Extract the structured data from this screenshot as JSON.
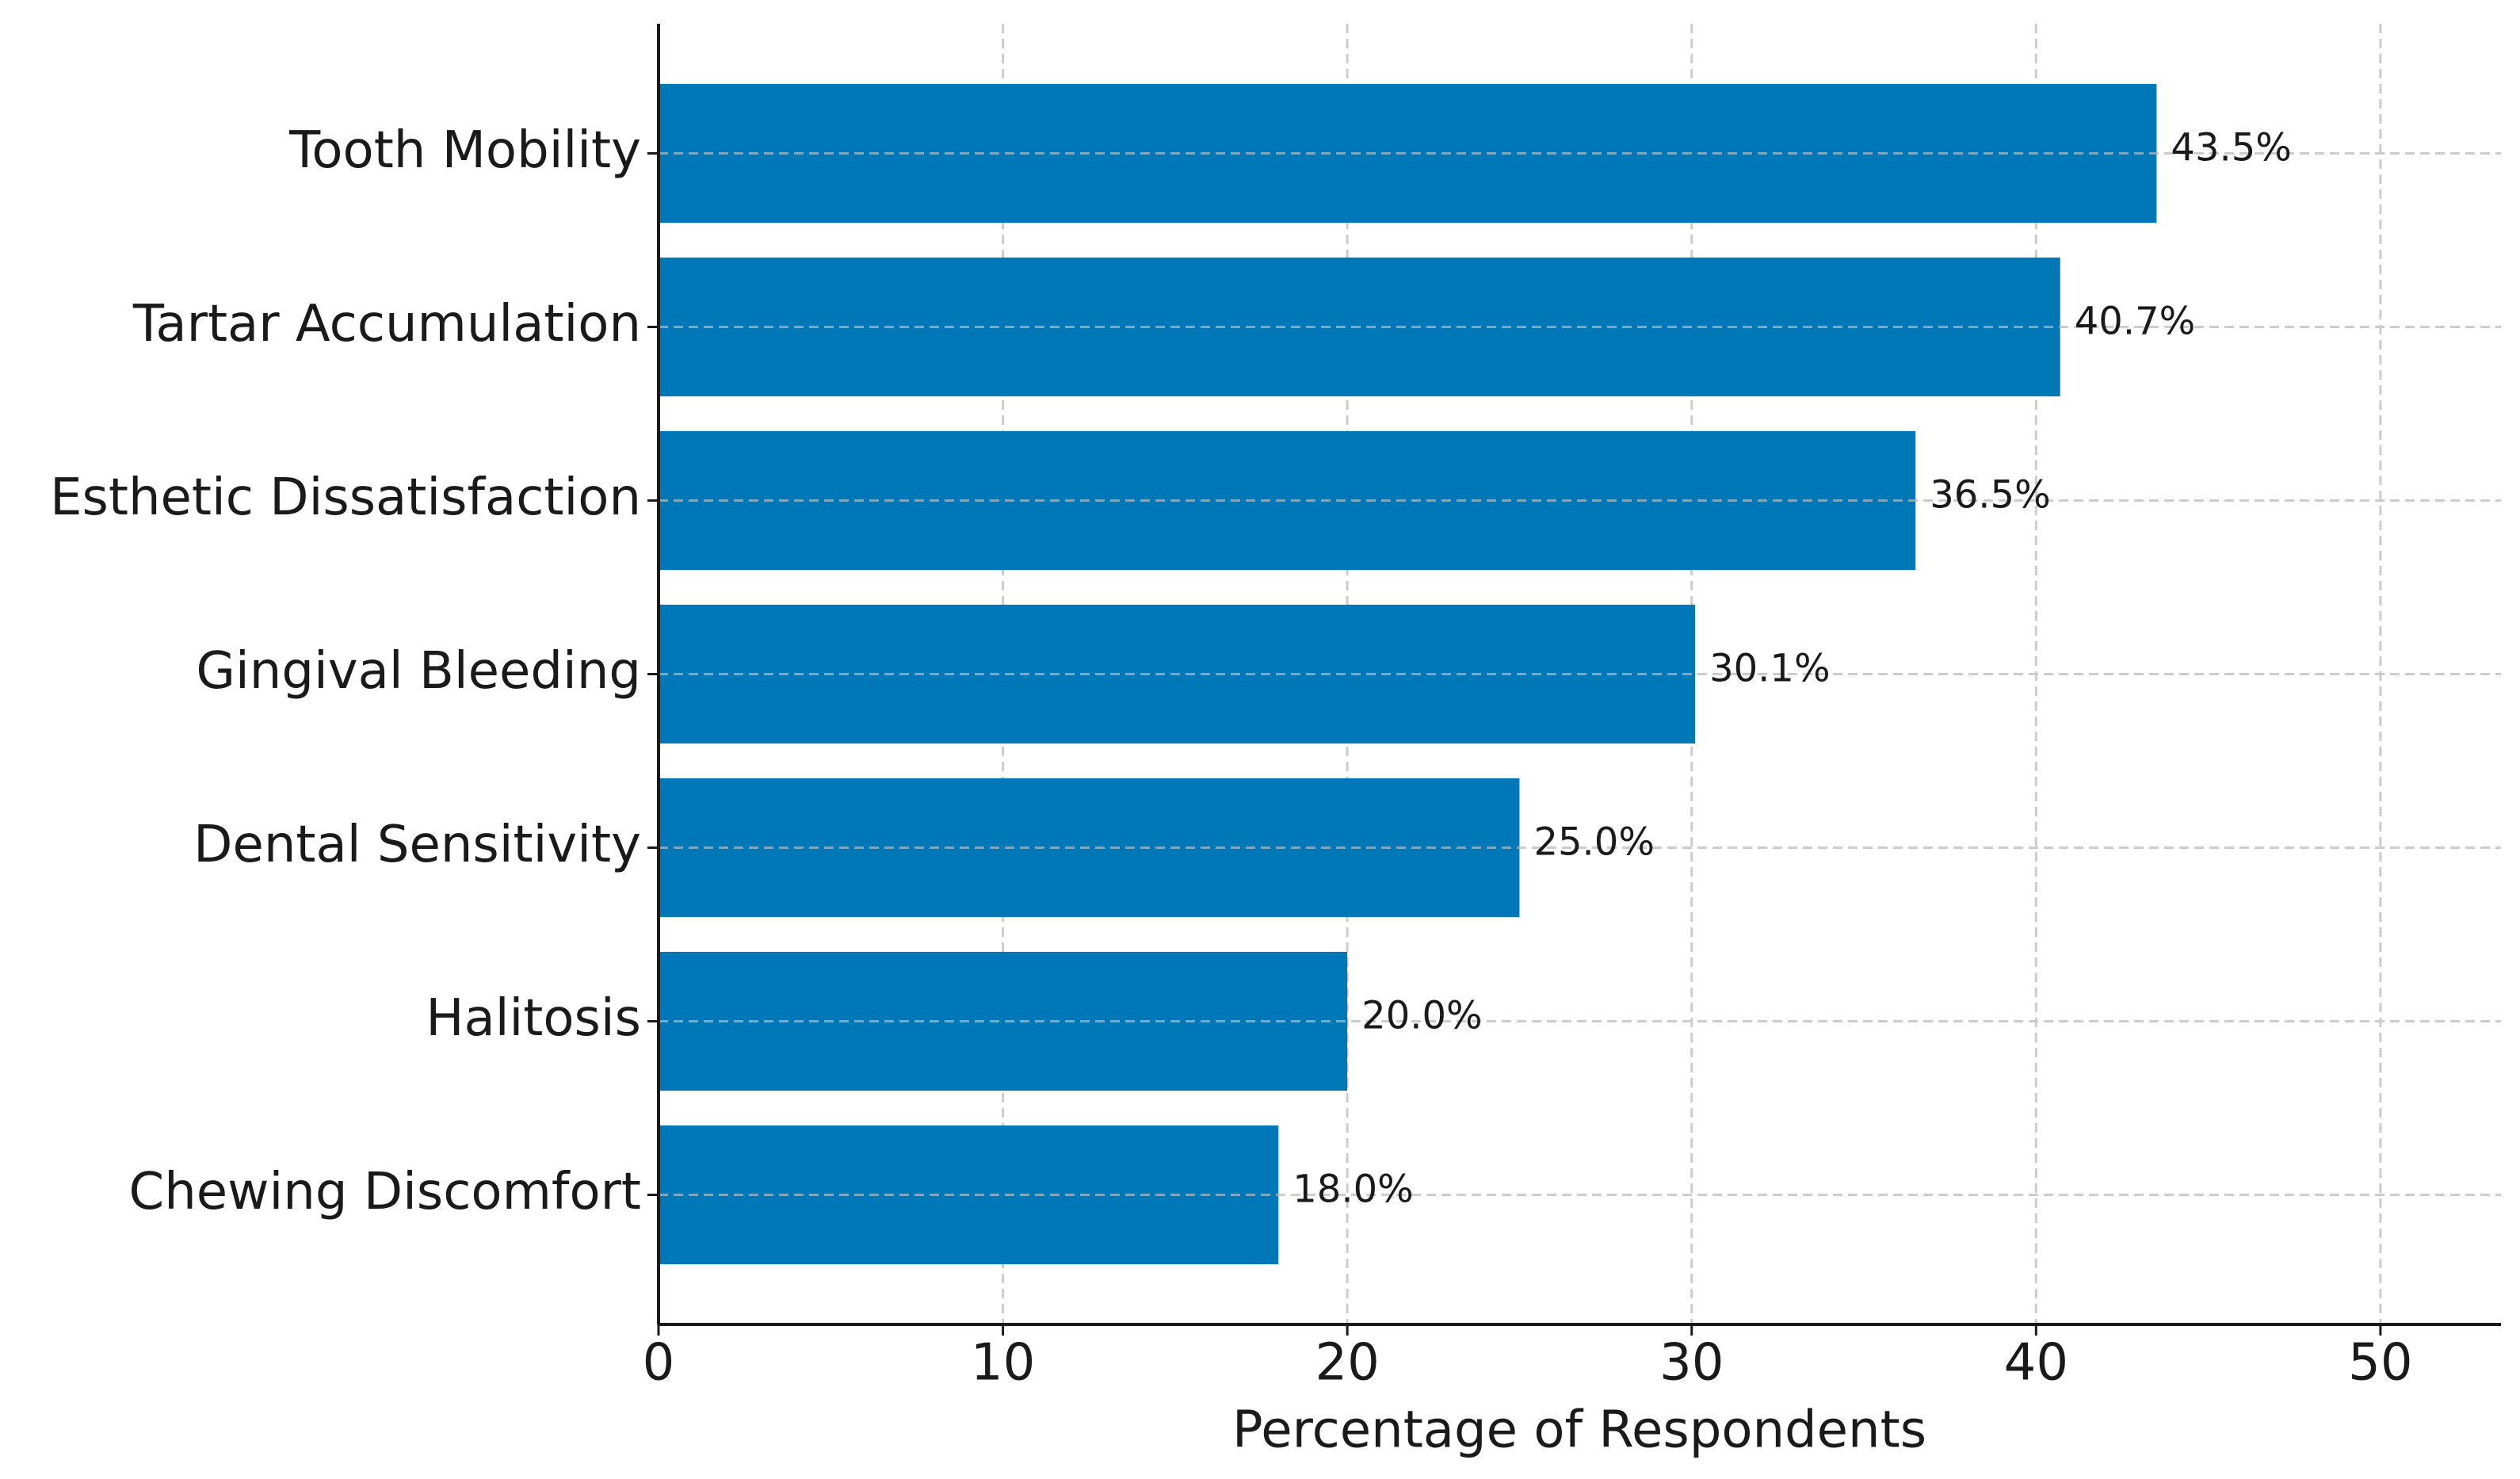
{
  "chart_data": {
    "type": "bar",
    "orientation": "horizontal",
    "x_label": "Percentage of Respondents",
    "categories": [
      "Tooth Mobility",
      "Tartar Accumulation",
      "Esthetic Dissatisfaction",
      "Gingival Bleeding",
      "Dental Sensitivity",
      "Halitosis",
      "Chewing Discomfort"
    ],
    "values": [
      43.5,
      40.7,
      36.5,
      30.1,
      25.0,
      20.0,
      18.0
    ],
    "value_labels": [
      "43.5%",
      "40.7%",
      "36.5%",
      "30.1%",
      "25.0%",
      "20.0%",
      "18.0%"
    ],
    "color": "#0077b6",
    "xlim": [
      0,
      53.5
    ],
    "xticks": [
      0,
      10,
      20,
      30,
      40,
      50
    ],
    "grid": true
  }
}
